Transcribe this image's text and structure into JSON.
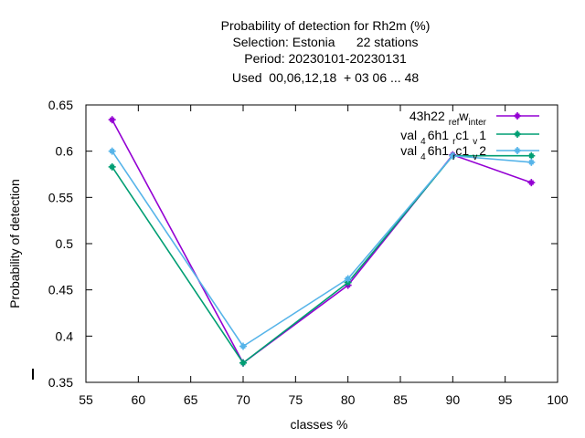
{
  "chart_data": {
    "type": "line",
    "title_lines": [
      "Probability of detection  for Rh2m (%)",
      "Selection: Estonia      22 stations",
      "Period: 20230101-20230131",
      "Used  00,06,12,18  + 03 06 ... 48"
    ],
    "xlabel": "classes %",
    "ylabel": "Probability of detection",
    "xlim": [
      55,
      100
    ],
    "ylim": [
      0.35,
      0.65
    ],
    "xticks": [
      55,
      60,
      65,
      70,
      75,
      80,
      85,
      90,
      95,
      100
    ],
    "yticks": [
      0.35,
      0.4,
      0.45,
      0.5,
      0.55,
      0.6,
      0.65
    ],
    "ytick_labels": [
      "0.35",
      "0.4",
      "0.45",
      "0.5",
      "0.55",
      "0.6",
      "0.65"
    ],
    "grid": false,
    "legend_position": "top-right",
    "series": [
      {
        "legend": {
          "a": "43h22",
          "b": "ref",
          "c": "w",
          "d": "inter"
        },
        "color": "#9400d3",
        "x": [
          57.5,
          70,
          80,
          90,
          97.5
        ],
        "values": [
          0.634,
          0.371,
          0.455,
          0.596,
          0.566
        ]
      },
      {
        "legend": {
          "a": "val",
          "b": "4",
          "c": "6h1",
          "d": "r",
          "e": "c1",
          "f": "v",
          "g": "1"
        },
        "color": "#009e73",
        "x": [
          57.5,
          70,
          80,
          90,
          97.5
        ],
        "values": [
          0.583,
          0.371,
          0.458,
          0.595,
          0.595
        ]
      },
      {
        "legend": {
          "a": "val",
          "b": "4",
          "c": "6h1",
          "d": "r",
          "e": "c1",
          "f": "v",
          "g": "2"
        },
        "color": "#56b4e9",
        "x": [
          57.5,
          70,
          80,
          90,
          97.5
        ],
        "values": [
          0.6,
          0.389,
          0.462,
          0.595,
          0.588
        ]
      }
    ]
  }
}
